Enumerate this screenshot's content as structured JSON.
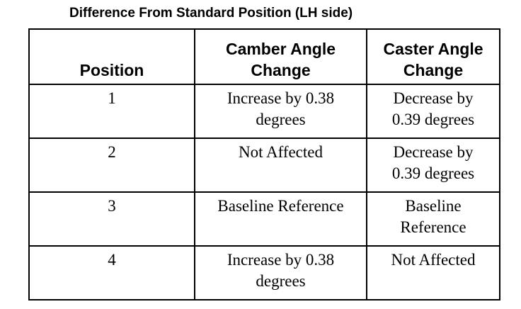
{
  "header": {
    "title": "Difference From Standard Position (LH side)"
  },
  "table": {
    "columns": [
      "Position",
      "Camber Angle Change",
      "Caster Angle Change"
    ],
    "rows": [
      [
        "1",
        "Increase by 0.38 degrees",
        "Decrease by 0.39 degrees"
      ],
      [
        "2",
        "Not Affected",
        "Decrease by 0.39 degrees"
      ],
      [
        "3",
        "Baseline Reference",
        "Baseline Reference"
      ],
      [
        "4",
        "Increase by 0.38 degrees",
        "Not Affected"
      ]
    ]
  }
}
